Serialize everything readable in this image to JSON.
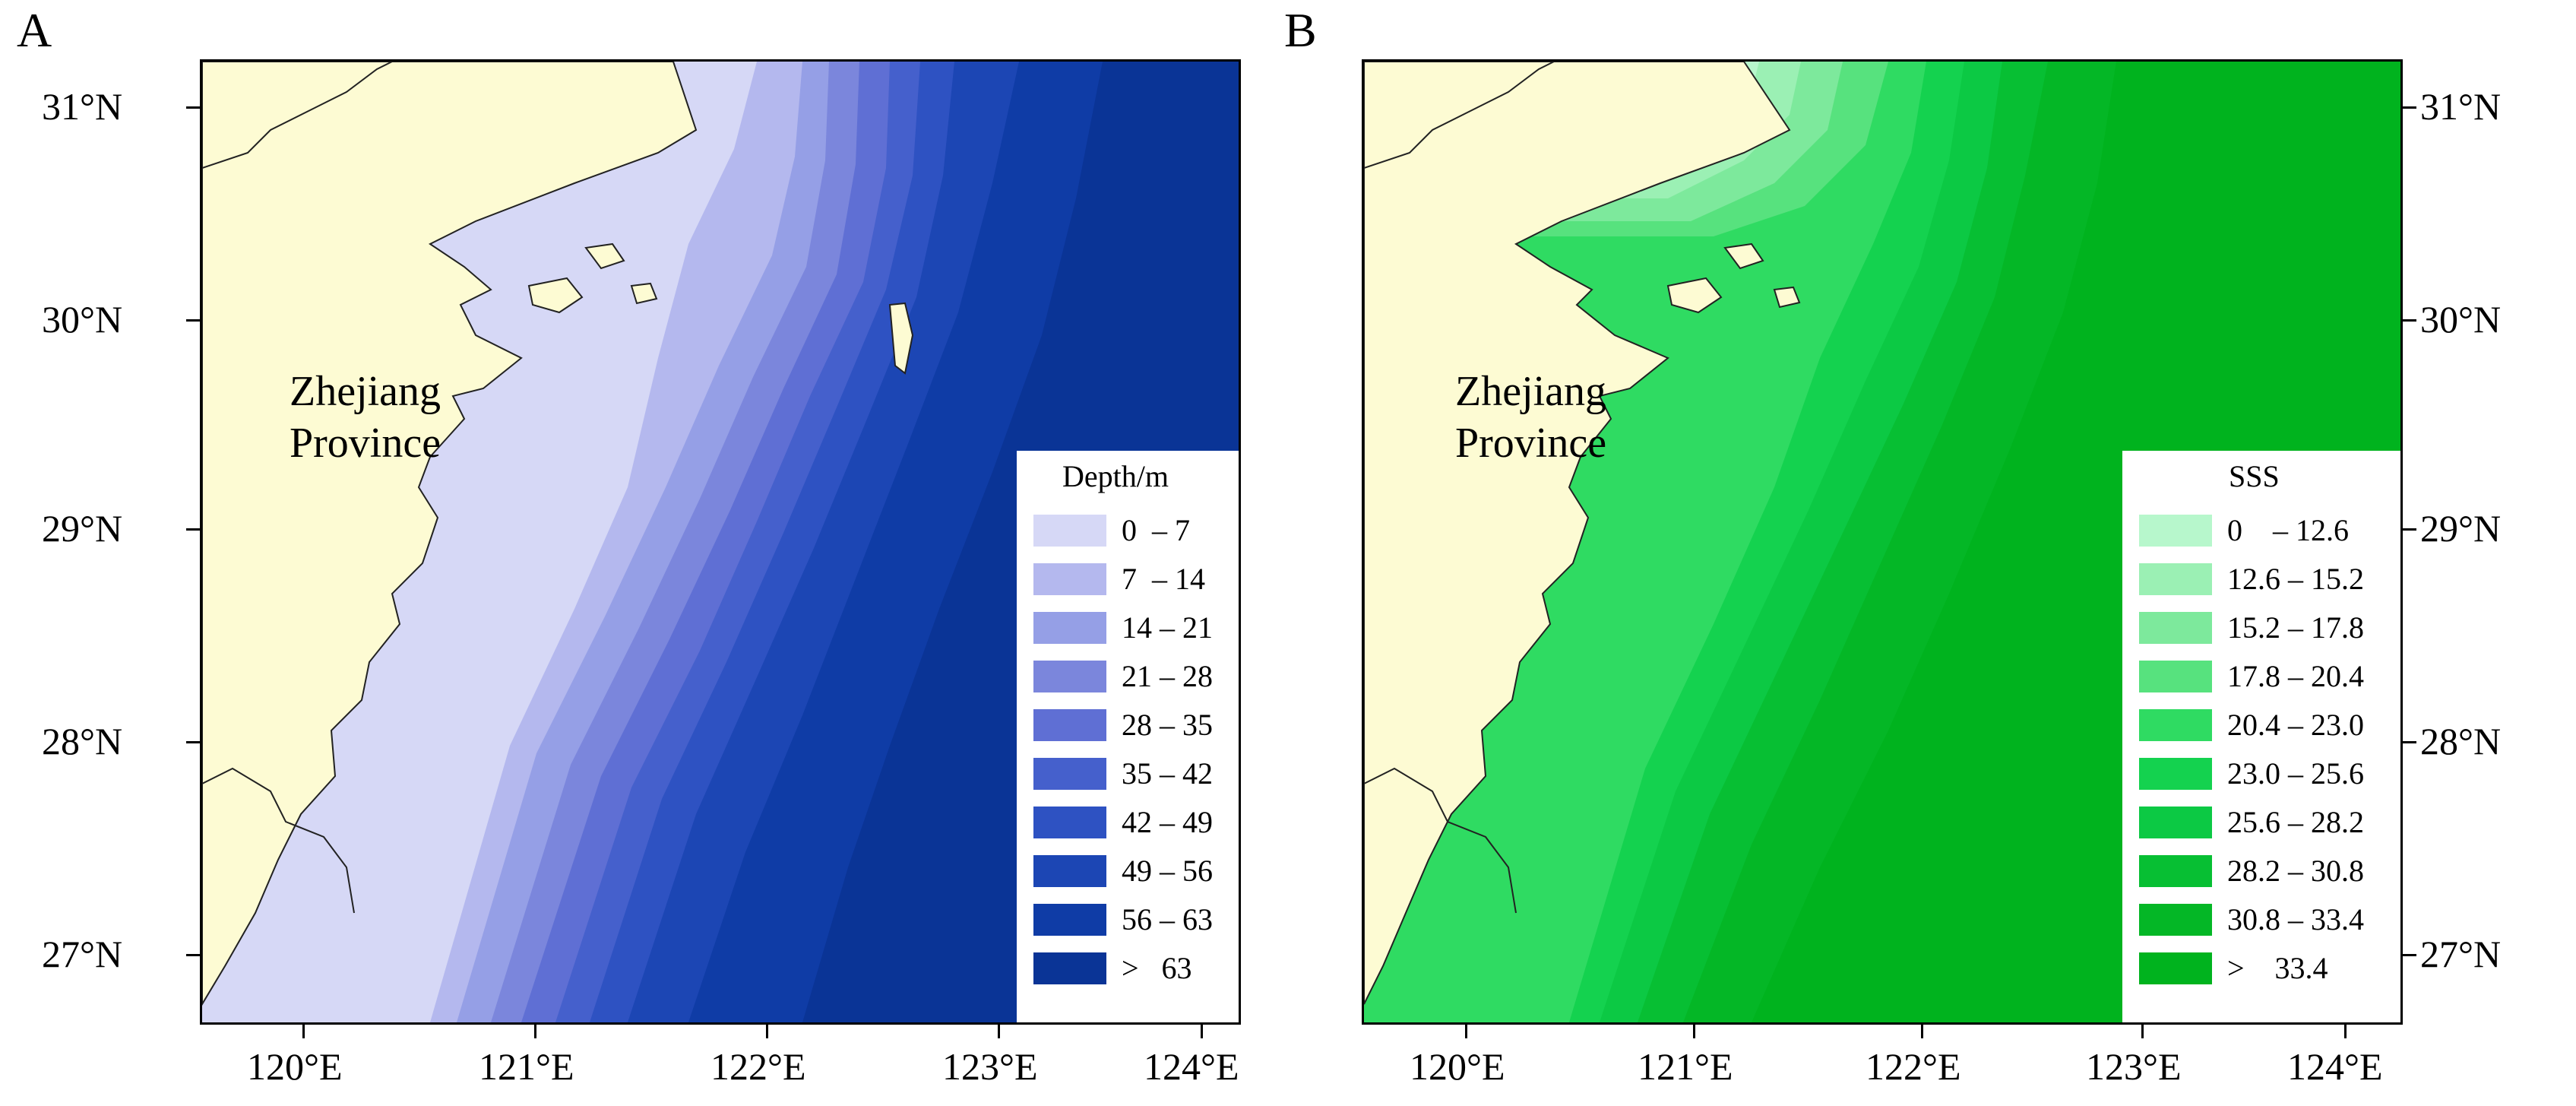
{
  "panels": [
    {
      "letter": "A",
      "province_label": [
        "Zhejiang",
        "Province"
      ],
      "lat_labels": [
        "31°N",
        "30°N",
        "29°N",
        "28°N",
        "27°N"
      ],
      "lon_labels": [
        "120°E",
        "121°E",
        "122°E",
        "123°E",
        "124°E"
      ],
      "legend": {
        "title": "Depth/m",
        "classes": [
          {
            "label": "0  – 7",
            "color": "#d6d8f6"
          },
          {
            "label": "7  – 14",
            "color": "#b4b8ee"
          },
          {
            "label": "14 – 21",
            "color": "#959fe6"
          },
          {
            "label": "21 – 28",
            "color": "#7b86dc"
          },
          {
            "label": "28 – 35",
            "color": "#5f6fd4"
          },
          {
            "label": "35 – 42",
            "color": "#4560cc"
          },
          {
            "label": "42 – 49",
            "color": "#2e52c2"
          },
          {
            "label": "49 – 56",
            "color": "#1c46b4"
          },
          {
            "label": "56 – 63",
            "color": "#0f3ca6"
          },
          {
            "label": ">   63",
            "color": "#0a3496"
          }
        ]
      }
    },
    {
      "letter": "B",
      "province_label": [
        "Zhejiang",
        "Province"
      ],
      "lat_labels": [
        "31°N",
        "30°N",
        "29°N",
        "28°N",
        "27°N"
      ],
      "lon_labels": [
        "120°E",
        "121°E",
        "122°E",
        "123°E",
        "124°E"
      ],
      "legend": {
        "title": "SSS",
        "classes": [
          {
            "label": "0    – 12.6",
            "color": "#b7f7cc"
          },
          {
            "label": "12.6 – 15.2",
            "color": "#9bf0b4"
          },
          {
            "label": "15.2 – 17.8",
            "color": "#7de99c"
          },
          {
            "label": "17.8 – 20.4",
            "color": "#57e27e"
          },
          {
            "label": "20.4 – 23.0",
            "color": "#2fdb62"
          },
          {
            "label": "23.0 – 25.6",
            "color": "#14d24f"
          },
          {
            "label": "25.6 – 28.2",
            "color": "#0cc944"
          },
          {
            "label": "28.2 – 30.8",
            "color": "#07bf33"
          },
          {
            "label": "30.8 – 33.4",
            "color": "#04b726"
          },
          {
            "label": ">    33.4",
            "color": "#00b31e"
          }
        ]
      }
    }
  ],
  "land_color": "#fdfbd3"
}
